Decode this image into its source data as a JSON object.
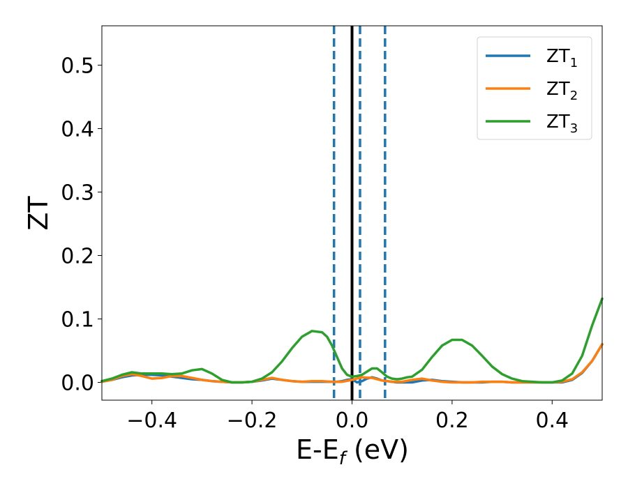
{
  "chart_data": {
    "type": "line",
    "title": "",
    "xlabel": "E-E",
    "xlabel_sub": "f",
    "xlabel_unit": " (eV)",
    "ylabel": "ZT",
    "xlim": [
      -0.5,
      0.5
    ],
    "ylim": [
      -0.028,
      0.562
    ],
    "xticks": [
      -0.4,
      -0.2,
      0.0,
      0.2,
      0.4
    ],
    "xtick_labels": [
      "−0.4",
      "−0.2",
      "0.0",
      "0.2",
      "0.4"
    ],
    "yticks": [
      0.0,
      0.1,
      0.2,
      0.3,
      0.4,
      0.5
    ],
    "ytick_labels": [
      "0.0",
      "0.1",
      "0.2",
      "0.3",
      "0.4",
      "0.5"
    ],
    "grid": false,
    "legend_position": "top-right",
    "vlines": [
      {
        "x": 0.0,
        "color": "#000000",
        "style": "solid"
      },
      {
        "x": -0.036,
        "color": "#1f77b4",
        "style": "dashed"
      },
      {
        "x": 0.016,
        "color": "#1f77b4",
        "style": "dashed"
      },
      {
        "x": 0.066,
        "color": "#1f77b4",
        "style": "dashed"
      }
    ],
    "series": [
      {
        "name": "ZT",
        "sub": "1",
        "color": "#1f77b4",
        "x": [
          -0.5,
          -0.48,
          -0.46,
          -0.44,
          -0.42,
          -0.4,
          -0.38,
          -0.36,
          -0.34,
          -0.32,
          -0.3,
          -0.28,
          -0.26,
          -0.24,
          -0.22,
          -0.2,
          -0.18,
          -0.16,
          -0.14,
          -0.12,
          -0.1,
          -0.08,
          -0.06,
          -0.04,
          -0.03,
          -0.02,
          -0.01,
          0.0,
          0.01,
          0.02,
          0.03,
          0.04,
          0.05,
          0.06,
          0.07,
          0.08,
          0.09,
          0.1,
          0.11,
          0.12,
          0.14,
          0.16,
          0.18,
          0.2,
          0.22,
          0.24,
          0.26,
          0.28,
          0.3,
          0.32,
          0.34,
          0.36,
          0.38,
          0.4,
          0.42,
          0.44,
          0.46,
          0.48,
          0.5
        ],
        "y": [
          0.002,
          0.004,
          0.008,
          0.011,
          0.012,
          0.012,
          0.011,
          0.009,
          0.007,
          0.005,
          0.004,
          0.002,
          0.001,
          0.0,
          0.0,
          0.001,
          0.003,
          0.006,
          0.004,
          0.002,
          0.001,
          0.001,
          0.001,
          0.001,
          0.001,
          0.002,
          0.004,
          0.005,
          0.0,
          0.002,
          0.006,
          0.008,
          0.006,
          0.003,
          0.002,
          0.001,
          0.0,
          0.0,
          0.0,
          0.0,
          0.003,
          0.004,
          0.002,
          0.001,
          0.0,
          0.0,
          0.0,
          0.001,
          0.001,
          0.0,
          0.0,
          0.0,
          0.0,
          0.0,
          0.0,
          0.004,
          0.015,
          0.034,
          0.06
        ]
      },
      {
        "name": "ZT",
        "sub": "2",
        "color": "#ff7f0e",
        "x": [
          -0.5,
          -0.48,
          -0.46,
          -0.44,
          -0.42,
          -0.4,
          -0.38,
          -0.36,
          -0.34,
          -0.32,
          -0.3,
          -0.28,
          -0.26,
          -0.24,
          -0.22,
          -0.2,
          -0.18,
          -0.16,
          -0.14,
          -0.12,
          -0.1,
          -0.08,
          -0.06,
          -0.04,
          -0.02,
          0.0,
          0.02,
          0.04,
          0.06,
          0.08,
          0.1,
          0.12,
          0.14,
          0.16,
          0.18,
          0.2,
          0.22,
          0.24,
          0.26,
          0.28,
          0.3,
          0.32,
          0.34,
          0.36,
          0.38,
          0.4,
          0.42,
          0.44,
          0.46,
          0.48,
          0.5
        ],
        "y": [
          0.001,
          0.004,
          0.01,
          0.013,
          0.01,
          0.006,
          0.007,
          0.01,
          0.01,
          0.007,
          0.004,
          0.002,
          0.001,
          0.0,
          0.0,
          0.001,
          0.004,
          0.007,
          0.004,
          0.002,
          0.001,
          0.002,
          0.002,
          0.001,
          0.001,
          0.004,
          0.008,
          0.007,
          0.003,
          0.001,
          0.001,
          0.004,
          0.006,
          0.003,
          0.001,
          0.0,
          0.0,
          0.0,
          0.001,
          0.001,
          0.001,
          0.0,
          0.0,
          0.0,
          0.0,
          0.0,
          0.001,
          0.005,
          0.016,
          0.034,
          0.06
        ]
      },
      {
        "name": "ZT",
        "sub": "3",
        "color": "#2ca02c",
        "x": [
          -0.5,
          -0.48,
          -0.46,
          -0.44,
          -0.42,
          -0.4,
          -0.38,
          -0.36,
          -0.34,
          -0.32,
          -0.3,
          -0.28,
          -0.26,
          -0.24,
          -0.22,
          -0.2,
          -0.18,
          -0.16,
          -0.14,
          -0.12,
          -0.1,
          -0.08,
          -0.06,
          -0.05,
          -0.04,
          -0.03,
          -0.02,
          -0.01,
          0.0,
          0.01,
          0.02,
          0.03,
          0.04,
          0.05,
          0.06,
          0.07,
          0.08,
          0.09,
          0.1,
          0.11,
          0.12,
          0.14,
          0.16,
          0.18,
          0.2,
          0.22,
          0.24,
          0.26,
          0.28,
          0.3,
          0.32,
          0.34,
          0.36,
          0.38,
          0.4,
          0.42,
          0.44,
          0.46,
          0.48,
          0.5
        ],
        "y": [
          0.002,
          0.006,
          0.012,
          0.016,
          0.014,
          0.014,
          0.014,
          0.013,
          0.014,
          0.019,
          0.021,
          0.014,
          0.004,
          0.0,
          0.0,
          0.001,
          0.006,
          0.016,
          0.033,
          0.054,
          0.072,
          0.081,
          0.079,
          0.072,
          0.058,
          0.04,
          0.022,
          0.012,
          0.009,
          0.01,
          0.012,
          0.017,
          0.022,
          0.022,
          0.016,
          0.009,
          0.006,
          0.005,
          0.006,
          0.008,
          0.009,
          0.02,
          0.04,
          0.058,
          0.067,
          0.067,
          0.058,
          0.042,
          0.025,
          0.013,
          0.006,
          0.002,
          0.001,
          0.0,
          0.0,
          0.003,
          0.014,
          0.042,
          0.09,
          0.132
        ]
      }
    ]
  }
}
